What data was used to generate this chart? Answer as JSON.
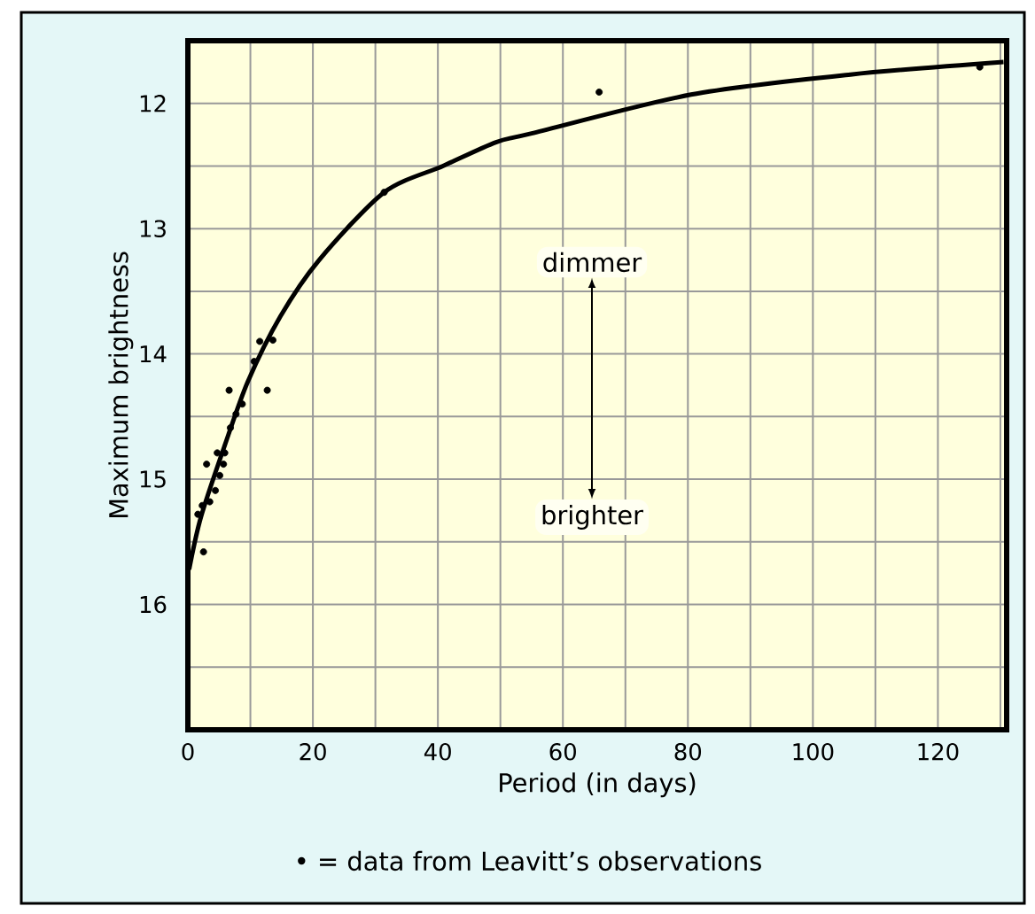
{
  "chart_data": {
    "type": "scatter",
    "xlabel": "Period (in days)",
    "ylabel": "Maximum brightness",
    "xlim": [
      0,
      131
    ],
    "ylim": [
      17,
      11.5
    ],
    "xticks": [
      0,
      {
        "value": 10,
        "label": null
      },
      20,
      {
        "value": 30,
        "label": null
      },
      40,
      {
        "value": 50,
        "label": null
      },
      60,
      {
        "value": 70,
        "label": null
      },
      80,
      {
        "value": 90,
        "label": null
      },
      100,
      {
        "value": 110,
        "label": null
      },
      120,
      {
        "value": 130,
        "label": null
      }
    ],
    "yticks": [
      12,
      {
        "value": 12.5,
        "label": null
      },
      13,
      {
        "value": 13.5,
        "label": null
      },
      14,
      {
        "value": 14.5,
        "label": null
      },
      15,
      {
        "value": 15.5,
        "label": null
      },
      16,
      {
        "value": 16.5,
        "label": null
      }
    ],
    "grid": true,
    "series": [
      {
        "marker": "circle",
        "color": "#000000",
        "x": [
          11.5,
          13.6,
          10.6,
          6.6,
          12.7,
          8.7,
          7.7,
          6.8,
          4.7,
          5.9,
          3.0,
          5.7,
          5.1,
          4.4,
          3.5,
          2.3,
          1.6,
          2.5,
          31.4,
          65.8,
          126.7
        ],
        "values": [
          13.9,
          13.89,
          14.06,
          14.29,
          14.29,
          14.4,
          14.48,
          14.59,
          14.79,
          14.79,
          14.88,
          14.88,
          14.97,
          15.09,
          15.18,
          15.21,
          15.28,
          15.58,
          12.71,
          11.91,
          11.71
        ]
      },
      {
        "type": "line",
        "color": "#000000",
        "x": [
          0.2,
          2.1,
          5.9,
          9.6,
          14.8,
          21,
          31.4,
          40.8,
          49.3,
          55,
          80.5,
          106,
          130.5
        ],
        "values": [
          15.72,
          15.3,
          14.73,
          14.22,
          13.7,
          13.25,
          12.71,
          12.5,
          12.31,
          12.24,
          11.93,
          11.77,
          11.67
        ]
      }
    ],
    "annotations": [
      "dimmer",
      "brighter",
      "• = data from Leavitt’s observations"
    ]
  }
}
